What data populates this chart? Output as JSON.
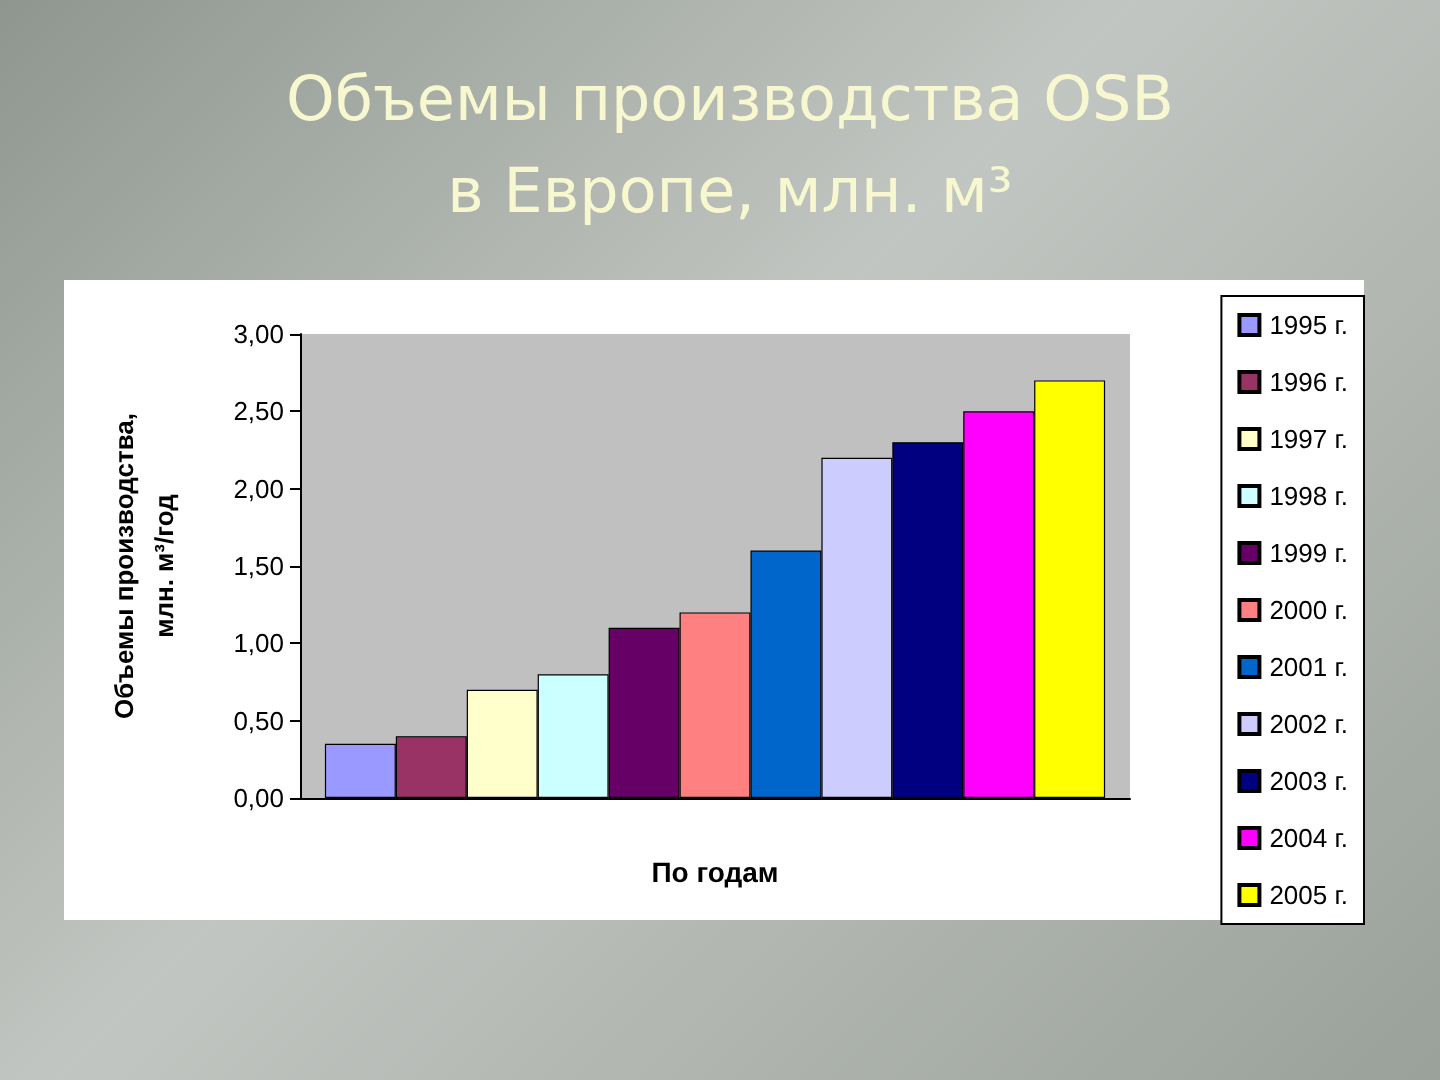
{
  "chart_data": {
    "type": "bar",
    "title": "Объемы производства OSB\nв Европе, млн. м³",
    "xlabel": "По годам",
    "ylabel": "Объемы производства,\nмлн. м³/год",
    "categories": [
      null
    ],
    "series": [
      {
        "name": "1995 г.",
        "color": "#9999ff",
        "values": [
          0.35
        ]
      },
      {
        "name": "1996 г.",
        "color": "#993366",
        "values": [
          0.4
        ]
      },
      {
        "name": "1997 г.",
        "color": "#ffffcc",
        "values": [
          0.7
        ]
      },
      {
        "name": "1998 г.",
        "color": "#ccffff",
        "values": [
          0.8
        ]
      },
      {
        "name": "1999 г.",
        "color": "#660066",
        "values": [
          1.1
        ]
      },
      {
        "name": "2000 г.",
        "color": "#ff8080",
        "values": [
          1.2
        ]
      },
      {
        "name": "2001 г.",
        "color": "#0066cc",
        "values": [
          1.6
        ]
      },
      {
        "name": "2002 г.",
        "color": "#ccccff",
        "values": [
          2.2
        ]
      },
      {
        "name": "2003 г.",
        "color": "#000080",
        "values": [
          2.3
        ]
      },
      {
        "name": "2004 г.",
        "color": "#ff00ff",
        "values": [
          2.5
        ]
      },
      {
        "name": "2005 г.",
        "color": "#ffff00",
        "values": [
          2.7
        ]
      }
    ],
    "ylim": [
      0,
      3
    ],
    "yticks": [
      {
        "value": 0,
        "label": "0,00"
      },
      {
        "value": 0.5,
        "label": "0,50"
      },
      {
        "value": 1,
        "label": "1,00"
      },
      {
        "value": 1.5,
        "label": "1,50"
      },
      {
        "value": 2,
        "label": "2,00"
      },
      {
        "value": 2.5,
        "label": "2,50"
      },
      {
        "value": 3,
        "label": "3,00"
      }
    ],
    "grid": false,
    "legend": "right"
  }
}
